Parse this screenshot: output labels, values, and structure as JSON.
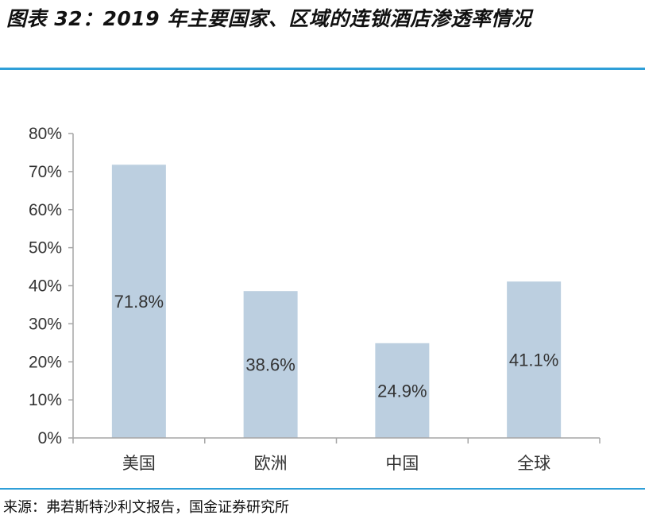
{
  "header": {
    "title": "图表 32：2019 年主要国家、区域的连锁酒店渗透率情况"
  },
  "footer": {
    "source": "来源：弗若斯特沙利文报告，国金证券研究所"
  },
  "chart_data": {
    "type": "bar",
    "title": "图表 32：2019 年主要国家、区域的连锁酒店渗透率情况",
    "categories": [
      "美国",
      "欧洲",
      "中国",
      "全球"
    ],
    "values": [
      71.8,
      38.6,
      24.9,
      41.1
    ],
    "data_labels": [
      "71.8%",
      "38.6%",
      "24.9%",
      "41.1%"
    ],
    "xlabel": "",
    "ylabel": "",
    "ylim": [
      0,
      80
    ],
    "yticks": [
      0,
      10,
      20,
      30,
      40,
      50,
      60,
      70,
      80
    ],
    "ytick_labels": [
      "0%",
      "10%",
      "20%",
      "30%",
      "40%",
      "50%",
      "60%",
      "70%",
      "80%"
    ],
    "grid": false,
    "legend": "none",
    "colors": {
      "bar": "#bccfe0",
      "axis": "#a6a6a6",
      "rule": "#2f9fd8"
    }
  }
}
